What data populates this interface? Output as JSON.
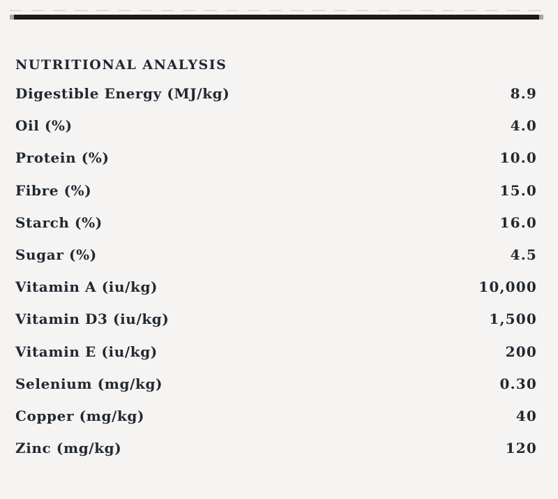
{
  "page": {
    "background_color": "#f5f4f2",
    "text_color": "#222831",
    "rule_color": "#1c1b1a",
    "dash_color": "#dddcd8"
  },
  "section": {
    "title": "NUTRITIONAL ANALYSIS",
    "rows": [
      {
        "label": "Digestible Energy (MJ/kg)",
        "value": "8.9"
      },
      {
        "label": "Oil (%)",
        "value": "4.0"
      },
      {
        "label": "Protein (%)",
        "value": "10.0"
      },
      {
        "label": "Fibre (%)",
        "value": "15.0"
      },
      {
        "label": "Starch (%)",
        "value": "16.0"
      },
      {
        "label": "Sugar (%)",
        "value": "4.5"
      },
      {
        "label": "Vitamin A (iu/kg)",
        "value": "10,000"
      },
      {
        "label": "Vitamin D3 (iu/kg)",
        "value": "1,500"
      },
      {
        "label": "Vitamin E (iu/kg)",
        "value": "200"
      },
      {
        "label": "Selenium (mg/kg)",
        "value": "0.30"
      },
      {
        "label": "Copper (mg/kg)",
        "value": "40"
      },
      {
        "label": "Zinc (mg/kg)",
        "value": "120"
      }
    ]
  }
}
